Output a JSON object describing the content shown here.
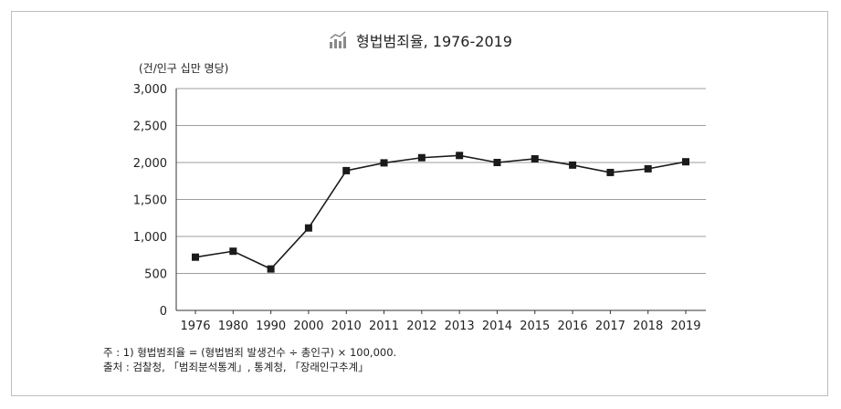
{
  "header": {
    "title": "형법범죄율, 1976-2019",
    "unit_label": "(건/인구 십만 명당)"
  },
  "notes": {
    "note_line": "주    : 1) 형법범죄율 = (형법범죄 발생건수 ÷ 총인구) × 100,000.",
    "source_line": "출처 : 검찰청, 「범죄분석통계」, 통계청, 「장래인구추계」"
  },
  "colors": {
    "line": "#1a1a1a",
    "grid": "#9e9e9e",
    "axis": "#333333",
    "icon": "#8a8a8a"
  },
  "title_icon": "bar-line-chart-icon",
  "chart_data": {
    "type": "line",
    "title": "형법범죄율, 1976-2019",
    "ylabel": "(건/인구 십만 명당)",
    "xlabel": "",
    "categories": [
      "1976",
      "1980",
      "1990",
      "2000",
      "2010",
      "2011",
      "2012",
      "2013",
      "2014",
      "2015",
      "2016",
      "2017",
      "2018",
      "2019"
    ],
    "series": [
      {
        "values": [
          720,
          800,
          560,
          1115,
          1890,
          1995,
          2065,
          2095,
          2000,
          2050,
          1965,
          1865,
          1915,
          2010
        ]
      }
    ],
    "ylim": [
      0,
      3000
    ],
    "yticks": [
      0,
      500,
      1000,
      1500,
      2000,
      2500,
      3000
    ],
    "ytick_labels": [
      "0",
      "500",
      "1,000",
      "1,500",
      "2,000",
      "2,500",
      "3,000"
    ],
    "grid": true,
    "legend": "none"
  }
}
